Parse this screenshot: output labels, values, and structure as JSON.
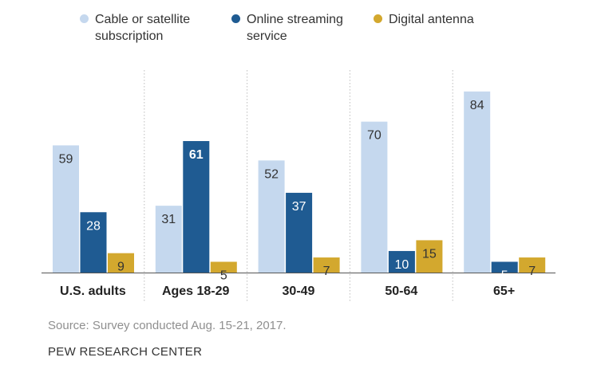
{
  "legend": {
    "items": [
      {
        "label": "Cable or satellite subscription",
        "lines": [
          "Cable or satellite",
          "subscription"
        ],
        "color": "#c5d8ee"
      },
      {
        "label": "Online streaming service",
        "lines": [
          "Online streaming",
          "service"
        ],
        "color": "#1f5b92"
      },
      {
        "label": "Digital antenna",
        "lines": [
          "Digital antenna"
        ],
        "color": "#d3a82e"
      }
    ]
  },
  "chart_data": {
    "type": "bar",
    "categories": [
      "U.S. adults",
      "Ages 18-29",
      "30-49",
      "50-64",
      "65+"
    ],
    "series": [
      {
        "name": "Cable or satellite subscription",
        "values": [
          59,
          31,
          52,
          70,
          84
        ],
        "color": "#c5d8ee"
      },
      {
        "name": "Online streaming service",
        "values": [
          28,
          61,
          37,
          10,
          5
        ],
        "color": "#1f5b92"
      },
      {
        "name": "Digital antenna",
        "values": [
          9,
          5,
          7,
          15,
          7
        ],
        "color": "#d3a82e"
      }
    ],
    "ylim": [
      0,
      100
    ],
    "grid": false,
    "legend_position": "top",
    "data_labels": true
  },
  "footer": {
    "source": "Source: Survey conducted Aug. 15-21, 2017.",
    "org": "PEW RESEARCH CENTER"
  }
}
